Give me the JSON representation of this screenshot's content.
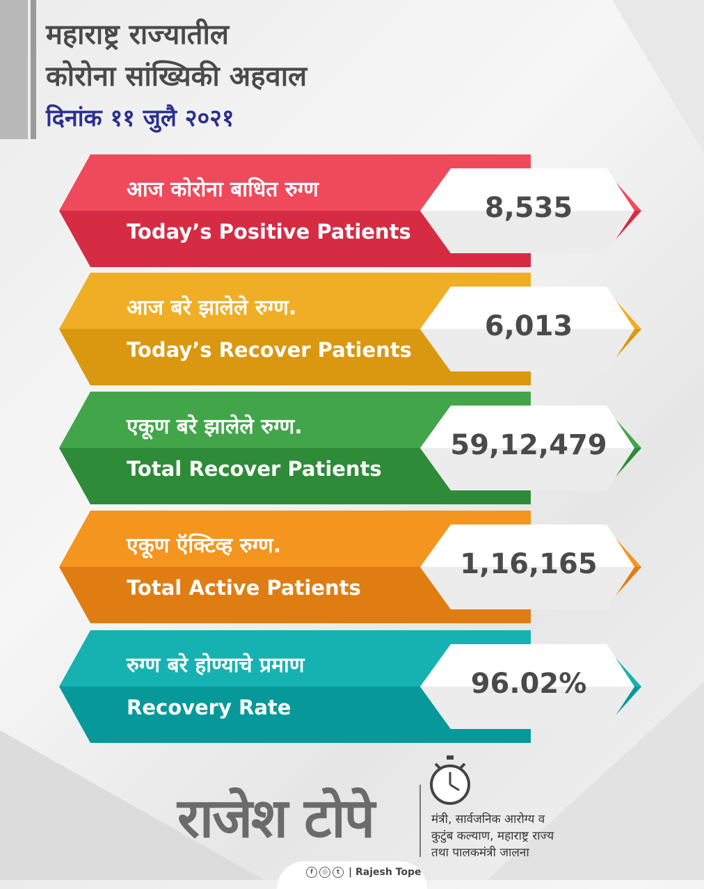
{
  "header": {
    "title_line1": "महाराष्ट्र राज्यातील",
    "title_line2": "कोरोना सांख्यिकी अहवाल",
    "date": "दिनांक ११ जुलै २०२१"
  },
  "stats": [
    {
      "label_mr": "आज कोरोना बाधित रुग्ण",
      "label_en": "Today’s Positive Patients",
      "value": "8,535",
      "color_top": "#ee4a5c",
      "color_bottom": "#d52c44"
    },
    {
      "label_mr": "आज बरे झालेले रुग्ण.",
      "label_en": "Today’s Recover Patients",
      "value": "6,013",
      "color_top": "#efae25",
      "color_bottom": "#d9980f"
    },
    {
      "label_mr": "एकूण बरे झालेले रुग्ण.",
      "label_en": "Total Recover Patients",
      "value": "59,12,479",
      "color_top": "#42a54a",
      "color_bottom": "#2e8b38"
    },
    {
      "label_mr": "एकूण ऍक्टिव्ह रुग्ण.",
      "label_en": "Total Active Patients",
      "value": "1,16,165",
      "color_top": "#f4951f",
      "color_bottom": "#e07d12"
    },
    {
      "label_mr": "रुग्ण बरे होण्याचे प्रमाण",
      "label_en": "Recovery Rate",
      "value": "96.02%",
      "color_top": "#16b2b2",
      "color_bottom": "#07999a"
    }
  ],
  "footer": {
    "signature": "राजेश टोपे",
    "designation_line1": "मंत्री, सार्वजनिक आरोग्य व",
    "designation_line2": "कुटुंब कल्याण, महाराष्ट्र राज्य",
    "designation_line3": "तथा पालकमंत्री जालना",
    "social_icons": [
      "facebook-icon",
      "instagram-icon",
      "twitter-icon"
    ],
    "handle": "| Rajesh Tope"
  }
}
